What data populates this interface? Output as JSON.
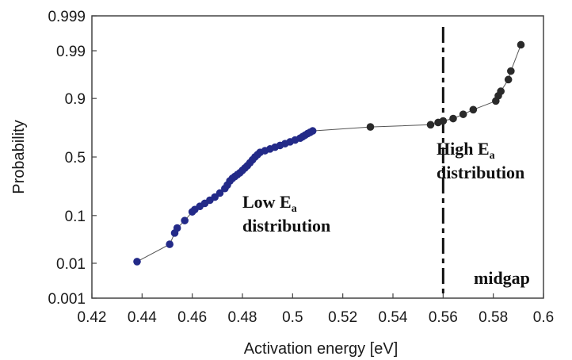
{
  "chart_data": {
    "type": "scatter",
    "xlabel": "Activation energy [eV]",
    "ylabel": "Probability",
    "xlim": [
      0.42,
      0.6
    ],
    "x_ticks": [
      "0.42",
      "0.44",
      "0.46",
      "0.48",
      "0.5",
      "0.52",
      "0.54",
      "0.56",
      "0.58",
      "0.6"
    ],
    "y_scale": "probability",
    "y_ticks": [
      "0.001",
      "0.01",
      "0.1",
      "0.5",
      "0.9",
      "0.99",
      "0.999"
    ],
    "grid": false,
    "series": [
      {
        "color_low": "#232a88",
        "color_high": "#2a2a2a",
        "points": [
          [
            0.438,
            0.011
          ],
          [
            0.451,
            0.028
          ],
          [
            0.453,
            0.048
          ],
          [
            0.454,
            0.06
          ],
          [
            0.457,
            0.082
          ],
          [
            0.46,
            0.115
          ],
          [
            0.461,
            0.125
          ],
          [
            0.463,
            0.14
          ],
          [
            0.465,
            0.155
          ],
          [
            0.467,
            0.172
          ],
          [
            0.469,
            0.19
          ],
          [
            0.471,
            0.215
          ],
          [
            0.473,
            0.245
          ],
          [
            0.474,
            0.27
          ],
          [
            0.475,
            0.3
          ],
          [
            0.476,
            0.32
          ],
          [
            0.477,
            0.335
          ],
          [
            0.478,
            0.35
          ],
          [
            0.479,
            0.365
          ],
          [
            0.48,
            0.385
          ],
          [
            0.481,
            0.405
          ],
          [
            0.482,
            0.425
          ],
          [
            0.483,
            0.45
          ],
          [
            0.484,
            0.475
          ],
          [
            0.485,
            0.5
          ],
          [
            0.486,
            0.52
          ],
          [
            0.487,
            0.54
          ],
          [
            0.489,
            0.555
          ],
          [
            0.491,
            0.57
          ],
          [
            0.493,
            0.585
          ],
          [
            0.495,
            0.6
          ],
          [
            0.497,
            0.615
          ],
          [
            0.499,
            0.63
          ],
          [
            0.501,
            0.645
          ],
          [
            0.503,
            0.66
          ],
          [
            0.504,
            0.672
          ],
          [
            0.505,
            0.684
          ],
          [
            0.506,
            0.696
          ],
          [
            0.507,
            0.706
          ],
          [
            0.508,
            0.716
          ],
          [
            0.531,
            0.745
          ],
          [
            0.555,
            0.76
          ],
          [
            0.558,
            0.775
          ],
          [
            0.56,
            0.785
          ],
          [
            0.564,
            0.8
          ],
          [
            0.568,
            0.825
          ],
          [
            0.572,
            0.85
          ],
          [
            0.581,
            0.89
          ],
          [
            0.582,
            0.91
          ],
          [
            0.583,
            0.925
          ],
          [
            0.586,
            0.955
          ],
          [
            0.587,
            0.97
          ],
          [
            0.591,
            0.993
          ]
        ]
      }
    ],
    "vline": {
      "x": 0.56,
      "style": "dashed"
    },
    "annotations": [
      {
        "label": "Low E",
        "subscript": "a",
        "line2": "distribution"
      },
      {
        "label": "High E",
        "subscript": "a",
        "line2": "distribution"
      },
      {
        "label": "midgap"
      }
    ]
  }
}
